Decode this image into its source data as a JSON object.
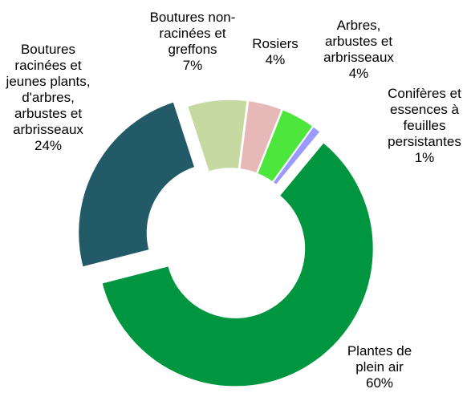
{
  "chart_data": {
    "type": "donut",
    "categories": [
      "Boutures non-racinées et greffons",
      "Rosiers",
      "Arbres, arbustes et arbrisseaux",
      "Conifères et essences à feuilles persistantes",
      "Plantes de plein air",
      "Boutures racinées et jeunes plants, d'arbres, arbustes et arbrisseaux"
    ],
    "values": [
      7,
      4,
      4,
      1,
      60,
      24
    ],
    "value_labels": [
      "7%",
      "4%",
      "4%",
      "1%",
      "60%",
      "24%"
    ],
    "colors": [
      "#c6d9a0",
      "#e6b8b7",
      "#4ce63c",
      "#9999ff",
      "#00963f",
      "#235a68"
    ]
  }
}
